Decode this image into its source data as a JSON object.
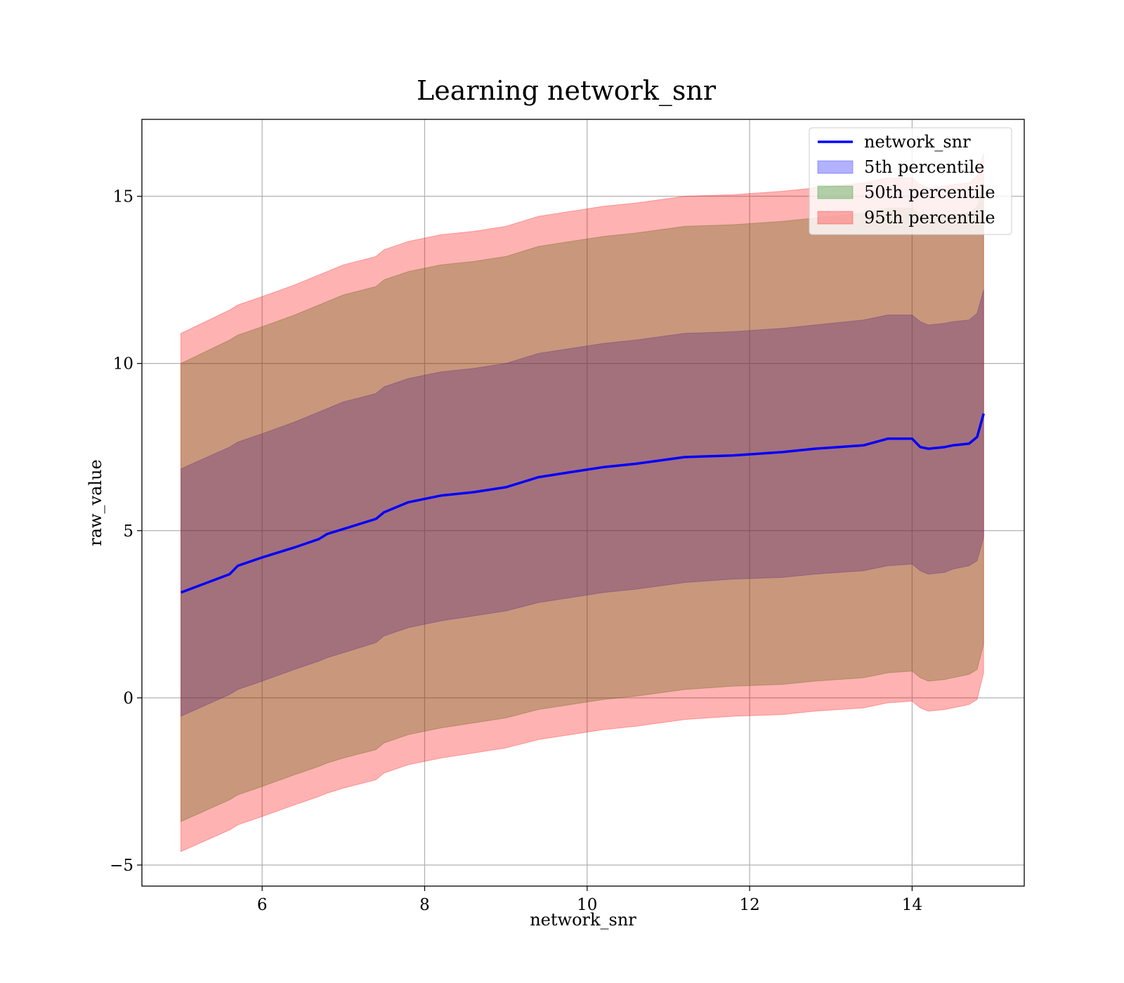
{
  "chart_data": {
    "type": "area",
    "title": "Learning network_snr",
    "xlabel": "network_snr",
    "ylabel": "raw_value",
    "xlim": [
      4.52,
      15.38
    ],
    "ylim": [
      -5.63,
      17.3
    ],
    "xticks": [
      6,
      8,
      10,
      12,
      14
    ],
    "xtick_labels": [
      "6",
      "8",
      "10",
      "12",
      "14"
    ],
    "yticks": [
      -5,
      0,
      5,
      10,
      15
    ],
    "ytick_labels": [
      "−5",
      "0",
      "5",
      "10",
      "15"
    ],
    "grid": true,
    "legend_placement": "upper right",
    "x": [
      5.0,
      5.6,
      5.7,
      6.0,
      6.4,
      6.7,
      6.8,
      7.0,
      7.4,
      7.5,
      7.8,
      8.2,
      8.6,
      9.0,
      9.4,
      9.8,
      10.2,
      10.6,
      11.2,
      11.8,
      12.4,
      12.8,
      13.4,
      13.7,
      14.0,
      14.1,
      14.2,
      14.4,
      14.5,
      14.7,
      14.8,
      14.88
    ],
    "series": [
      {
        "name": "network_snr",
        "kind": "line",
        "color": "#0000ff",
        "values": [
          3.15,
          3.7,
          3.95,
          4.2,
          4.5,
          4.75,
          4.9,
          5.05,
          5.35,
          5.55,
          5.85,
          6.05,
          6.15,
          6.3,
          6.6,
          6.75,
          6.9,
          7.0,
          7.2,
          7.25,
          7.35,
          7.45,
          7.55,
          7.75,
          7.75,
          7.5,
          7.45,
          7.5,
          7.55,
          7.6,
          7.8,
          8.5
        ]
      },
      {
        "name": "5th percentile",
        "kind": "band",
        "color": "#0000ff",
        "opacity": 0.3,
        "lower": [
          -0.55,
          0.1,
          0.25,
          0.5,
          0.85,
          1.1,
          1.2,
          1.35,
          1.65,
          1.85,
          2.1,
          2.3,
          2.45,
          2.6,
          2.85,
          3.0,
          3.15,
          3.25,
          3.45,
          3.55,
          3.6,
          3.7,
          3.8,
          3.95,
          4.0,
          3.8,
          3.7,
          3.75,
          3.85,
          3.95,
          4.1,
          4.8
        ],
        "upper": [
          6.85,
          7.5,
          7.65,
          7.9,
          8.25,
          8.55,
          8.65,
          8.85,
          9.1,
          9.3,
          9.55,
          9.75,
          9.85,
          10.0,
          10.3,
          10.45,
          10.6,
          10.7,
          10.9,
          10.95,
          11.05,
          11.15,
          11.3,
          11.45,
          11.45,
          11.25,
          11.15,
          11.2,
          11.25,
          11.3,
          11.5,
          12.2
        ]
      },
      {
        "name": "50th percentile",
        "kind": "band",
        "color": "#008000",
        "opacity": 0.3,
        "lower": [
          -3.7,
          -3.05,
          -2.9,
          -2.65,
          -2.3,
          -2.05,
          -1.95,
          -1.8,
          -1.55,
          -1.35,
          -1.1,
          -0.9,
          -0.75,
          -0.6,
          -0.35,
          -0.2,
          -0.05,
          0.05,
          0.25,
          0.35,
          0.4,
          0.5,
          0.6,
          0.75,
          0.8,
          0.6,
          0.5,
          0.55,
          0.6,
          0.7,
          0.85,
          1.6
        ],
        "upper": [
          10.0,
          10.7,
          10.85,
          11.1,
          11.45,
          11.75,
          11.85,
          12.05,
          12.3,
          12.5,
          12.75,
          12.95,
          13.05,
          13.2,
          13.5,
          13.65,
          13.8,
          13.9,
          14.1,
          14.15,
          14.25,
          14.35,
          14.5,
          14.65,
          14.65,
          14.45,
          14.35,
          14.4,
          14.45,
          14.5,
          14.7,
          15.4
        ]
      },
      {
        "name": "95th percentile",
        "kind": "band",
        "color": "#ff0000",
        "opacity": 0.3,
        "lower": [
          -4.6,
          -3.95,
          -3.8,
          -3.55,
          -3.2,
          -2.95,
          -2.85,
          -2.7,
          -2.45,
          -2.25,
          -2.0,
          -1.8,
          -1.65,
          -1.5,
          -1.25,
          -1.1,
          -0.95,
          -0.85,
          -0.65,
          -0.55,
          -0.5,
          -0.4,
          -0.3,
          -0.15,
          -0.1,
          -0.3,
          -0.4,
          -0.35,
          -0.3,
          -0.2,
          -0.05,
          0.75
        ],
        "upper": [
          10.9,
          11.6,
          11.75,
          12.0,
          12.35,
          12.65,
          12.75,
          12.95,
          13.2,
          13.4,
          13.65,
          13.85,
          13.95,
          14.1,
          14.4,
          14.55,
          14.7,
          14.8,
          15.0,
          15.05,
          15.15,
          15.25,
          15.4,
          15.55,
          15.55,
          15.35,
          15.25,
          15.3,
          15.35,
          15.4,
          15.6,
          16.3
        ]
      }
    ]
  }
}
